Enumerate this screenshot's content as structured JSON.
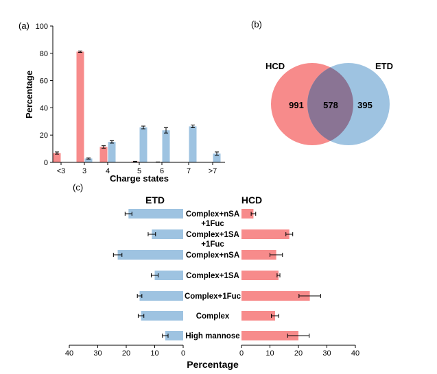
{
  "colors": {
    "hcd": "#f78b8b",
    "etd": "#9ec3e1",
    "overlap": "#8a7494",
    "errorbar": "#000000"
  },
  "chart_data": [
    {
      "panel_label": "(a)",
      "type": "bar",
      "categories": [
        "<3",
        "3",
        "4",
        "5",
        "6",
        "7",
        ">7"
      ],
      "series": [
        {
          "key": "hcd",
          "values": [
            6.8,
            81.2,
            11.3,
            0.6,
            0.2,
            0,
            0
          ],
          "errors": [
            0.8,
            0.5,
            0.9,
            0.2,
            0.1,
            0,
            0
          ]
        },
        {
          "key": "etd",
          "values": [
            0,
            2.8,
            15.0,
            25.6,
            23.5,
            26.4,
            6.4
          ],
          "errors": [
            0,
            0.4,
            0.9,
            1.0,
            2.0,
            1.0,
            1.2
          ]
        }
      ],
      "xlabel": "Charge states",
      "ylabel": "Percentage",
      "ylim": [
        0,
        100
      ],
      "yticks": [
        "0",
        "20",
        "40",
        "60",
        "80",
        "100"
      ]
    },
    {
      "panel_label": "(b)",
      "type": "venn",
      "sets": [
        {
          "name": "HCD",
          "only": "991"
        },
        {
          "name": "ETD",
          "only": "395"
        }
      ],
      "overlap": "578"
    },
    {
      "panel_label": "(c)",
      "type": "bar",
      "orientation": "horizontal-mirrored",
      "categories": [
        "Complex+nSA\n+1Fuc",
        "Complex+1SA\n+1Fuc",
        "Complex+nSA",
        "Complex+1SA",
        "Complex+1Fuc",
        "Complex",
        "High mannose"
      ],
      "series": [
        {
          "name": "ETD",
          "values": [
            19.2,
            11.0,
            23.0,
            10.0,
            15.3,
            14.8,
            6.3
          ],
          "errors": [
            1.2,
            1.3,
            1.5,
            1.2,
            0.8,
            1.0,
            1.0
          ]
        },
        {
          "name": "HCD",
          "values": [
            4.2,
            16.8,
            12.2,
            13.0,
            24.0,
            11.8,
            20.0
          ],
          "errors": [
            0.8,
            1.2,
            2.2,
            0.5,
            3.8,
            1.3,
            3.8
          ]
        }
      ],
      "xlabel": "Percentage",
      "xlim": [
        0,
        40
      ],
      "xticks": [
        "40",
        "30",
        "20",
        "10",
        "0",
        "0",
        "10",
        "20",
        "30",
        "40"
      ]
    }
  ]
}
